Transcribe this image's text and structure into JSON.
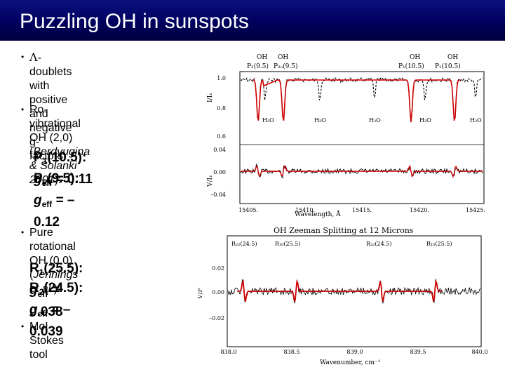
{
  "slide": {
    "title": "Puzzling OH in sunspots"
  },
  "bullets": {
    "b1_symbol": "Λ",
    "b1_line1": "-doublets with positive and",
    "b1_line2": "negative g-factors",
    "b2_line1": "Ro-vibrational OH (2,0)",
    "b2_line2a": "(",
    "b2_line2b": "Berdyugina & Solanki",
    "b2_line3a": "2001",
    "b2_line3b": "):",
    "p1_label": "P",
    "p1_sub": "1",
    "p1_paren": "(10.5):",
    "p1_g": "g",
    "p1_gsub": "eff",
    "p1_value": "=   0.11",
    "p2_label": "P",
    "p2_sub": "2",
    "p2_paren": "(9.5):",
    "p2_g": "g",
    "p2_gsub": "eff",
    "p2_value": "= –0.12",
    "b3_line1": "Pure rotational OH (0,0)",
    "b3_line2a": "(",
    "b3_line2b": "Jennings et al.",
    "b3_line2c": "):",
    "r1_label": "R",
    "r1_sub": "1",
    "r1_paren": "(25.5):",
    "r1_g": "g",
    "r1_gsub": "eff",
    "r1_value": "=   0.038",
    "r2_label": "R",
    "r2_sub": "2",
    "r2_paren": "(24.5):",
    "r2_g": "g",
    "r2_gsub": "eff",
    "r2_value": "= –0.039",
    "b4": "MoI Stokes tool"
  },
  "plot1": {
    "top_labels": [
      {
        "l1": "OH",
        "l2": "P₂(9.5)"
      },
      {
        "l1": "OH",
        "l2": "P₂ₒ(9.5)"
      },
      {
        "l1": "OH",
        "l2": "P₁(10.5)"
      },
      {
        "l1": "OH",
        "l2": "P₁(10.5)"
      }
    ],
    "ylabel_top": "I/I₁",
    "ylabel_bottom": "V/I₁",
    "yticks_top": [
      "1.0",
      "0.8",
      "0.6"
    ],
    "yticks_bottom": [
      "0.04",
      "0.00",
      "–0.04"
    ],
    "h2o_labels": [
      "H₂O",
      "H₂O",
      "H₂O",
      "H₂O",
      "H₂O"
    ],
    "xticks": [
      "15405.",
      "15410.",
      "15415.",
      "15420.",
      "15425."
    ],
    "xlabel": "Wavelength, Å",
    "observed_color": "#000000",
    "model_color": "#cc0000"
  },
  "plot2": {
    "title": "OH Zeeman Splitting at 12 Microns",
    "line_labels": [
      "R₂₂(24.5)",
      "R₁₀(25.5)",
      "R₂₂(24.5)",
      "R₁₀(25.5)"
    ],
    "ylabel": "V/Iᶜ",
    "yticks": [
      "0.02",
      "0.00",
      "–0.02"
    ],
    "xticks": [
      "838.0",
      "838.5",
      "839.0",
      "839.5",
      "840.0"
    ],
    "xlabel": "Wavenumber, cm⁻¹"
  }
}
